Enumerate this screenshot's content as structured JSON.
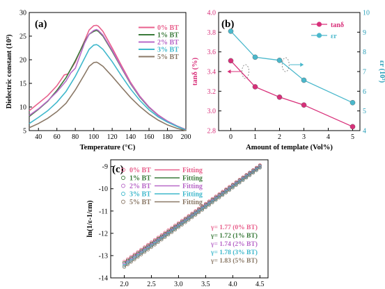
{
  "chart_data": [
    {
      "panel": "(a)",
      "type": "line",
      "xlabel": "Temperature (°C)",
      "ylabel": "Dielectric constant (10³)",
      "xlim": [
        30,
        200
      ],
      "ylim": [
        5,
        30
      ],
      "xticks": [
        "40",
        "60",
        "80",
        "100",
        "120",
        "140",
        "160",
        "180",
        "200"
      ],
      "yticks": [
        "5",
        "10",
        "15",
        "20",
        "25",
        "30"
      ],
      "legend_position": "top-right",
      "series": [
        {
          "name": "0% BT",
          "color": "#e8608c",
          "x": [
            30,
            40,
            50,
            60,
            68,
            72,
            80,
            90,
            95,
            100,
            103,
            105,
            110,
            120,
            130,
            140,
            150,
            160,
            170,
            180,
            190,
            200
          ],
          "y": [
            9.2,
            10.8,
            12.4,
            14.5,
            16.8,
            17.0,
            19.5,
            24.0,
            26.3,
            27.2,
            27.3,
            27.1,
            26.0,
            22.5,
            18.8,
            15.2,
            12.3,
            10.0,
            8.3,
            7.0,
            6.0,
            5.2
          ]
        },
        {
          "name": "1% BT",
          "color": "#3a7a3a",
          "x": [
            30,
            40,
            50,
            60,
            70,
            80,
            90,
            95,
            100,
            103,
            105,
            110,
            120,
            130,
            140,
            150,
            160,
            170,
            180,
            190,
            200
          ],
          "y": [
            8.0,
            9.5,
            11.2,
            13.5,
            16.2,
            19.8,
            23.8,
            25.4,
            26.0,
            26.2,
            26.0,
            25.0,
            21.8,
            18.3,
            14.9,
            12.1,
            9.9,
            8.2,
            7.0,
            6.0,
            5.2
          ]
        },
        {
          "name": "2% BT",
          "color": "#b868c8",
          "x": [
            30,
            40,
            50,
            60,
            70,
            75,
            80,
            90,
            95,
            100,
            103,
            105,
            110,
            120,
            130,
            140,
            150,
            160,
            170,
            180,
            190,
            200
          ],
          "y": [
            8.2,
            9.6,
            11.3,
            13.2,
            15.5,
            17.2,
            18.2,
            23.5,
            25.4,
            26.2,
            26.4,
            26.2,
            25.2,
            22.0,
            18.4,
            15.0,
            12.2,
            10.0,
            8.2,
            7.0,
            6.0,
            5.2
          ]
        },
        {
          "name": "3% BT",
          "color": "#3fb8cc",
          "x": [
            30,
            40,
            50,
            60,
            70,
            80,
            90,
            95,
            100,
            103,
            105,
            110,
            120,
            130,
            140,
            150,
            160,
            170,
            180,
            190,
            200
          ],
          "y": [
            6.5,
            7.8,
            9.2,
            11.0,
            13.3,
            16.5,
            20.3,
            22.2,
            23.1,
            23.2,
            23.0,
            22.2,
            19.6,
            16.6,
            13.8,
            11.4,
            9.4,
            7.9,
            6.8,
            5.9,
            5.1
          ]
        },
        {
          "name": "5% BT",
          "color": "#8a7866",
          "x": [
            30,
            40,
            50,
            60,
            70,
            80,
            90,
            95,
            100,
            103,
            105,
            110,
            120,
            130,
            140,
            150,
            160,
            170,
            180,
            190,
            200
          ],
          "y": [
            5.6,
            6.5,
            7.6,
            9.0,
            10.8,
            13.6,
            16.9,
            18.6,
            19.4,
            19.5,
            19.3,
            18.6,
            16.5,
            14.2,
            12.0,
            10.1,
            8.5,
            7.2,
            6.2,
            5.5,
            5.0
          ]
        }
      ]
    },
    {
      "panel": "(b)",
      "type": "line",
      "xlabel": "Amount of template (Vol%)",
      "ylabel_left": "tanδ (%)",
      "ylabel_right": "εr (10³)",
      "xlim": [
        -0.5,
        5.3
      ],
      "ylim_left": [
        2.8,
        4.0
      ],
      "ylim_right": [
        4,
        10
      ],
      "xticks": [
        "0",
        "1",
        "2",
        "3",
        "4",
        "5"
      ],
      "yticks_left": [
        "2.8",
        "3.0",
        "3.2",
        "3.4",
        "3.6",
        "3.8",
        "4.0"
      ],
      "yticks_right": [
        "4",
        "5",
        "6",
        "7",
        "8",
        "9",
        "10"
      ],
      "legend_position": "top-right",
      "series": [
        {
          "name": "tanδ",
          "axis": "left",
          "color": "#d8307a",
          "x": [
            0,
            1,
            2,
            3,
            5
          ],
          "y": [
            3.51,
            3.245,
            3.14,
            3.06,
            2.84
          ]
        },
        {
          "name": "εr",
          "axis": "right",
          "color": "#4ab8cc",
          "x": [
            0,
            1,
            2,
            3,
            5
          ],
          "y": [
            9.05,
            7.73,
            7.57,
            6.56,
            5.42
          ]
        }
      ]
    },
    {
      "panel": "(c)",
      "type": "scatter",
      "xlabel": "",
      "ylabel": "ln(1/ε-1/εm)",
      "xlim": [
        1.75,
        4.65
      ],
      "ylim": [
        -14,
        -8.7
      ],
      "xticks": [
        "2.0",
        "2.5",
        "3.0",
        "3.5",
        "4.0",
        "4.5"
      ],
      "yticks": [
        "-14",
        "-13",
        "-12",
        "-11",
        "-10",
        "-9"
      ],
      "legend_position": "top-left",
      "fit_label": "Fitting",
      "series": [
        {
          "name": "0% BT",
          "color": "#e8608c",
          "x0": 2.0,
          "y0": -13.27,
          "x1": 4.5,
          "y1": -8.94,
          "gamma": "γ= 1.77 (0% BT)"
        },
        {
          "name": "1% BT",
          "color": "#3a7a3a",
          "x0": 2.0,
          "y0": -13.33,
          "x1": 4.5,
          "y1": -8.97,
          "gamma": "γ= 1.72 (1% BT)"
        },
        {
          "name": "2% BT",
          "color": "#b868c8",
          "x0": 2.0,
          "y0": -13.39,
          "x1": 4.5,
          "y1": -9.0,
          "gamma": "γ= 1.74 (2% BT)"
        },
        {
          "name": "3% BT",
          "color": "#3fb8cc",
          "x0": 2.0,
          "y0": -13.45,
          "x1": 4.5,
          "y1": -9.03,
          "gamma": "γ= 1.78 (3% BT)"
        },
        {
          "name": "5% BT",
          "color": "#8a7866",
          "x0": 2.0,
          "y0": -13.51,
          "x1": 4.5,
          "y1": -9.06,
          "gamma": "γ= 1.83 (5% BT)"
        }
      ]
    }
  ]
}
